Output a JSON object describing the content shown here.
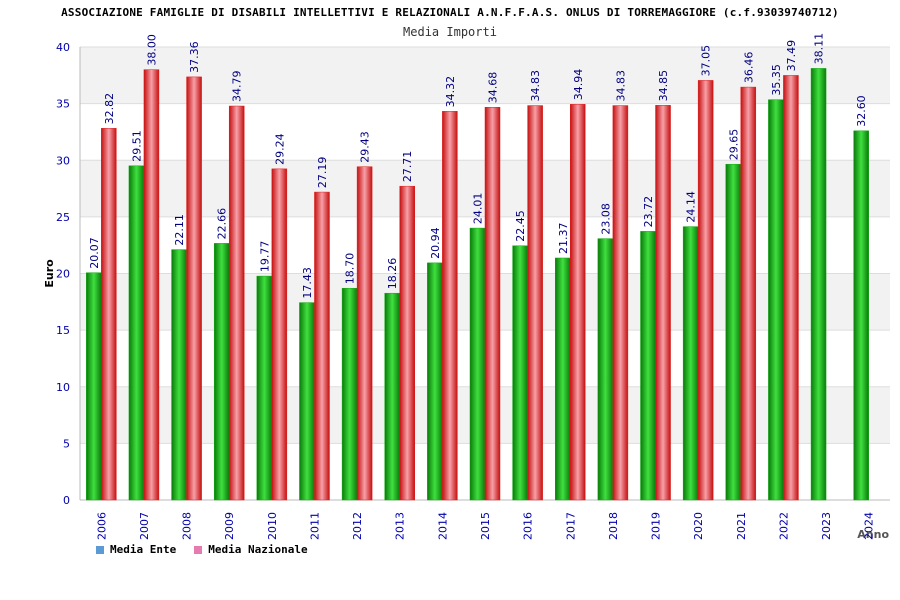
{
  "header": {
    "title": "ASSOCIAZIONE FAMIGLIE DI DISABILI INTELLETTIVI E RELAZIONALI A.N.F.F.A.S. ONLUS DI TORREMAGGIORE (c.f.93039740712)",
    "subtitle": "Media Importi"
  },
  "legend": {
    "items": [
      {
        "label": "Media Ente",
        "color": "#5b9bd5"
      },
      {
        "label": "Media Nazionale",
        "color": "#e57bb0"
      }
    ]
  },
  "colors": {
    "ente_bar": "#13a813",
    "nazionale_bar": "#e01e1e",
    "axis_text": "#0000aa",
    "value_label": "#000080"
  },
  "chart_data": {
    "type": "bar",
    "title": "Media Importi",
    "xlabel": "Anno",
    "ylabel": "Euro",
    "ylim": [
      0,
      40
    ],
    "yticks": [
      0,
      5,
      10,
      15,
      20,
      25,
      30,
      35,
      40
    ],
    "categories": [
      "2006",
      "2007",
      "2008",
      "2009",
      "2010",
      "2011",
      "2012",
      "2013",
      "2014",
      "2015",
      "2016",
      "2017",
      "2018",
      "2019",
      "2020",
      "2021",
      "2022",
      "2023",
      "2024"
    ],
    "series": [
      {
        "name": "Media Ente",
        "values": [
          20.07,
          29.51,
          22.11,
          22.66,
          19.77,
          17.43,
          18.7,
          18.26,
          20.94,
          24.01,
          22.45,
          21.37,
          23.08,
          23.72,
          24.14,
          29.65,
          35.35,
          38.11,
          32.6
        ],
        "labels": [
          "20.07",
          "29.51",
          "22.11",
          "22.66",
          "19.77",
          "17.43",
          "18.70",
          "18.26",
          "20.94",
          "24.01",
          "22.45",
          "21.37",
          "23.08",
          "23.72",
          "24.14",
          "29.65",
          "35.35",
          "38.11",
          "32.60"
        ]
      },
      {
        "name": "Media Nazionale",
        "values": [
          32.82,
          38.0,
          37.36,
          34.79,
          29.24,
          27.19,
          29.43,
          27.71,
          34.32,
          34.68,
          34.83,
          34.94,
          34.83,
          34.85,
          37.05,
          36.46,
          37.49,
          null,
          null
        ],
        "labels": [
          "32.82",
          "38.00",
          "37.36",
          "34.79",
          "29.24",
          "27.19",
          "29.43",
          "27.71",
          "34.32",
          "34.68",
          "34.83",
          "34.94",
          "34.83",
          "34.85",
          "37.05",
          "36.46",
          "37.49",
          "",
          ""
        ]
      }
    ]
  }
}
